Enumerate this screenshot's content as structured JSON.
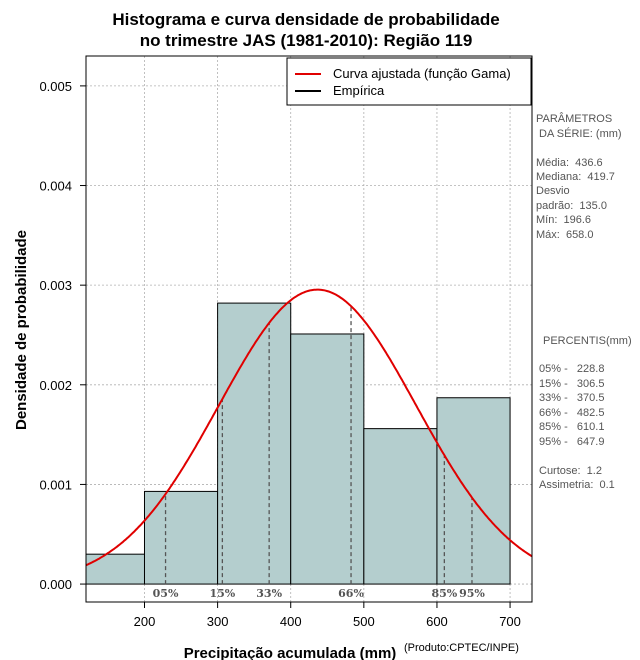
{
  "chart_data": {
    "type": "histogram",
    "title_line1": "Histograma e curva densidade de probabilidade",
    "title_line2": "no trimestre JAS (1981-2010): Região 119",
    "xlabel": "Precipitação acumulada (mm)",
    "ylabel": "Densidade de probabilidade",
    "credit": "(Produto:CPTEC/INPE)",
    "xlim": [
      120,
      730
    ],
    "ylim": [
      -0.00018,
      0.0053
    ],
    "xticks": [
      200,
      300,
      400,
      500,
      600,
      700
    ],
    "yticks": [
      0.0,
      0.001,
      0.002,
      0.003,
      0.004,
      0.005
    ],
    "ytick_labels": [
      "0.000",
      "0.001",
      "0.002",
      "0.003",
      "0.004",
      "0.005"
    ],
    "grid": true,
    "bars": [
      {
        "x0": 100,
        "x1": 200,
        "density": 0.0003
      },
      {
        "x0": 200,
        "x1": 300,
        "density": 0.00093
      },
      {
        "x0": 300,
        "x1": 400,
        "density": 0.00282
      },
      {
        "x0": 400,
        "x1": 500,
        "density": 0.00251
      },
      {
        "x0": 500,
        "x1": 600,
        "density": 0.00156
      },
      {
        "x0": 600,
        "x1": 700,
        "density": 0.00187
      }
    ],
    "bar_color": "#b4cece",
    "curve": {
      "name": "Curva ajustada (função Gama)",
      "mean": 436.6,
      "sd": 135.0,
      "color": "#e00000"
    },
    "empirical": {
      "name": "Empírica",
      "color": "#000000"
    },
    "percentiles": [
      {
        "label": "05%",
        "value": 228.8
      },
      {
        "label": "15%",
        "value": 306.5
      },
      {
        "label": "33%",
        "value": 370.5
      },
      {
        "label": "66%",
        "value": 482.5
      },
      {
        "label": "85%",
        "value": 610.1
      },
      {
        "label": "95%",
        "value": 647.9
      }
    ],
    "legend_position": "top-right"
  },
  "sidebar": {
    "params_title_1": "PARÂMETROS",
    "params_title_2": " DA SÉRIE: (mm)",
    "params": [
      "Média:  436.6",
      "Mediana:  419.7",
      "Desvio",
      "padrão:  135.0",
      "Mín:  196.6",
      "Máx:  658.0"
    ],
    "percentis_title": "PERCENTIS(mm)",
    "percentis": [
      "05% -   228.8",
      "15% -   306.5",
      "33% -   370.5",
      "66% -   482.5",
      "85% -   610.1",
      "95% -   647.9"
    ],
    "stats": [
      "Curtose:  1.2",
      "Assimetria:  0.1"
    ]
  }
}
